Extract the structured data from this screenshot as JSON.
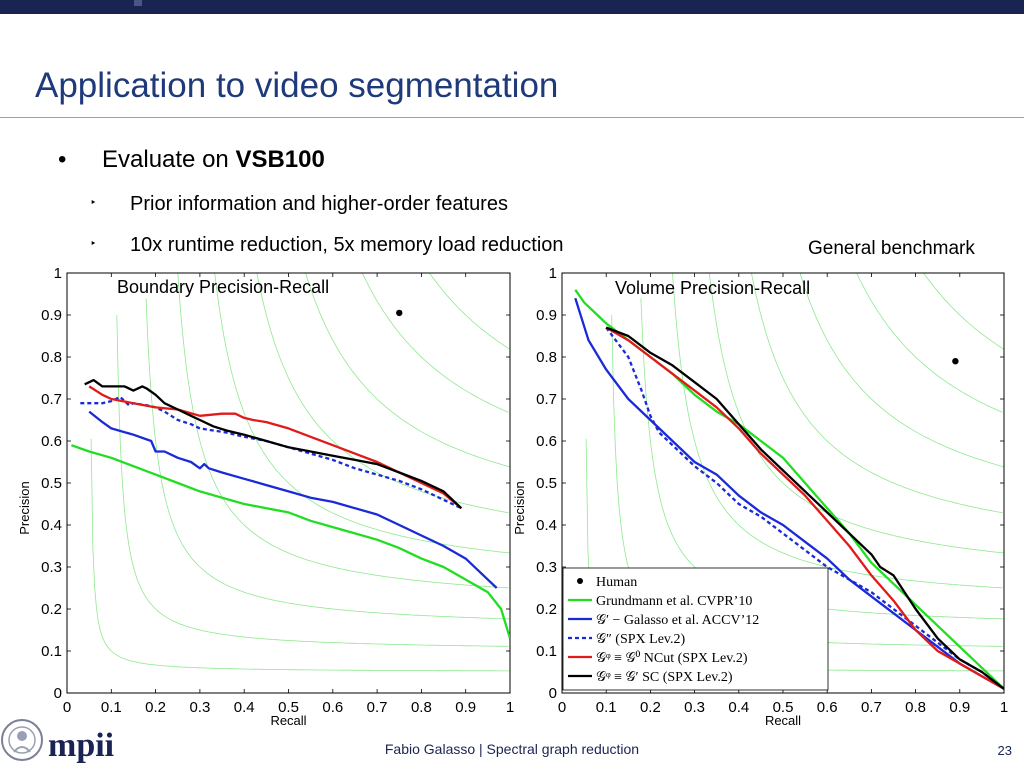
{
  "slide": {
    "title": "Application to video segmentation",
    "bullet": {
      "prefix": "Evaluate on ",
      "bold": "VSB100"
    },
    "subbullets": [
      "Prior information and higher-order features",
      "10x runtime reduction, 5x memory load reduction"
    ],
    "bullet_marker": "•",
    "sub_marker": "‣",
    "right_note": "General benchmark",
    "footer": "Fabio Galasso | Spectral graph reduction",
    "page_number": "23",
    "logo_text": "mpii"
  },
  "chart_data": [
    {
      "type": "line",
      "annotation": "Boundary Precision-Recall",
      "xlabel": "Recall",
      "ylabel": "Precision",
      "xlim": [
        0,
        1
      ],
      "ylim": [
        0,
        1
      ],
      "xticks": [
        "0",
        "0.1",
        "0.2",
        "0.3",
        "0.4",
        "0.5",
        "0.6",
        "0.7",
        "0.8",
        "0.9",
        "1"
      ],
      "yticks": [
        "0",
        "0.1",
        "0.2",
        "0.3",
        "0.4",
        "0.5",
        "0.6",
        "0.7",
        "0.8",
        "0.9",
        "1"
      ],
      "grid": "iso-F curves",
      "human": {
        "x": 0.75,
        "y": 0.905
      },
      "series": [
        {
          "color": "#22dd22",
          "dash": false,
          "x": [
            0.01,
            0.05,
            0.1,
            0.15,
            0.2,
            0.25,
            0.3,
            0.35,
            0.4,
            0.45,
            0.5,
            0.55,
            0.6,
            0.65,
            0.7,
            0.75,
            0.8,
            0.85,
            0.9,
            0.95,
            0.98,
            1.0
          ],
          "y": [
            0.59,
            0.575,
            0.56,
            0.54,
            0.52,
            0.5,
            0.48,
            0.465,
            0.45,
            0.44,
            0.43,
            0.41,
            0.395,
            0.38,
            0.365,
            0.345,
            0.32,
            0.3,
            0.27,
            0.24,
            0.2,
            0.13
          ]
        },
        {
          "color": "#1a2ad8",
          "dash": false,
          "x": [
            0.05,
            0.08,
            0.1,
            0.15,
            0.19,
            0.2,
            0.22,
            0.25,
            0.28,
            0.3,
            0.31,
            0.32,
            0.35,
            0.4,
            0.45,
            0.5,
            0.55,
            0.6,
            0.65,
            0.7,
            0.75,
            0.8,
            0.85,
            0.9,
            0.95,
            0.97
          ],
          "y": [
            0.67,
            0.645,
            0.63,
            0.615,
            0.6,
            0.575,
            0.575,
            0.56,
            0.55,
            0.535,
            0.545,
            0.535,
            0.525,
            0.51,
            0.495,
            0.48,
            0.465,
            0.455,
            0.44,
            0.425,
            0.4,
            0.375,
            0.35,
            0.32,
            0.27,
            0.25
          ]
        },
        {
          "color": "#1a2ad8",
          "dash": true,
          "x": [
            0.03,
            0.06,
            0.08,
            0.1,
            0.12,
            0.14,
            0.15,
            0.18,
            0.2,
            0.22,
            0.25,
            0.28,
            0.3,
            0.33,
            0.36,
            0.4,
            0.45,
            0.5,
            0.55,
            0.6,
            0.65,
            0.7,
            0.75,
            0.8,
            0.85,
            0.89
          ],
          "y": [
            0.69,
            0.69,
            0.69,
            0.695,
            0.705,
            0.685,
            0.69,
            0.685,
            0.68,
            0.67,
            0.65,
            0.64,
            0.63,
            0.625,
            0.62,
            0.61,
            0.6,
            0.585,
            0.57,
            0.555,
            0.535,
            0.52,
            0.505,
            0.485,
            0.46,
            0.44
          ]
        },
        {
          "color": "#e11a1a",
          "dash": false,
          "x": [
            0.05,
            0.08,
            0.1,
            0.15,
            0.2,
            0.25,
            0.3,
            0.35,
            0.38,
            0.4,
            0.42,
            0.45,
            0.5,
            0.55,
            0.6,
            0.65,
            0.7,
            0.75,
            0.8,
            0.85,
            0.89
          ],
          "y": [
            0.73,
            0.71,
            0.7,
            0.69,
            0.68,
            0.675,
            0.66,
            0.665,
            0.665,
            0.655,
            0.65,
            0.645,
            0.63,
            0.61,
            0.59,
            0.57,
            0.55,
            0.525,
            0.5,
            0.475,
            0.44
          ]
        },
        {
          "color": "#000000",
          "dash": false,
          "x": [
            0.04,
            0.06,
            0.08,
            0.1,
            0.13,
            0.15,
            0.17,
            0.18,
            0.2,
            0.22,
            0.25,
            0.28,
            0.3,
            0.33,
            0.36,
            0.4,
            0.45,
            0.5,
            0.55,
            0.6,
            0.65,
            0.7,
            0.75,
            0.8,
            0.85,
            0.89
          ],
          "y": [
            0.735,
            0.745,
            0.73,
            0.73,
            0.73,
            0.72,
            0.73,
            0.725,
            0.71,
            0.69,
            0.675,
            0.66,
            0.65,
            0.635,
            0.625,
            0.615,
            0.6,
            0.585,
            0.575,
            0.565,
            0.555,
            0.545,
            0.525,
            0.505,
            0.48,
            0.44
          ]
        }
      ]
    },
    {
      "type": "line",
      "annotation": "Volume Precision-Recall",
      "xlabel": "Recall",
      "ylabel": "Precision",
      "xlim": [
        0,
        1
      ],
      "ylim": [
        0,
        1
      ],
      "xticks": [
        "0",
        "0.1",
        "0.2",
        "0.3",
        "0.4",
        "0.5",
        "0.6",
        "0.7",
        "0.8",
        "0.9",
        "1"
      ],
      "yticks": [
        "0",
        "0.1",
        "0.2",
        "0.3",
        "0.4",
        "0.5",
        "0.6",
        "0.7",
        "0.8",
        "0.9",
        "1"
      ],
      "grid": "iso-F curves",
      "legend_position": "lower-right",
      "human": {
        "x": 0.89,
        "y": 0.79
      },
      "series": [
        {
          "name": "Grundmann et al. CVPR’10",
          "color": "#22dd22",
          "dash": false,
          "x": [
            0.03,
            0.05,
            0.08,
            0.1,
            0.15,
            0.2,
            0.25,
            0.3,
            0.35,
            0.4,
            0.45,
            0.5,
            0.55,
            0.6,
            0.65,
            0.7,
            0.75,
            0.8,
            0.85,
            0.9,
            0.95,
            1.0
          ],
          "y": [
            0.96,
            0.93,
            0.9,
            0.88,
            0.84,
            0.8,
            0.76,
            0.71,
            0.67,
            0.64,
            0.6,
            0.56,
            0.5,
            0.44,
            0.38,
            0.31,
            0.26,
            0.21,
            0.16,
            0.11,
            0.06,
            0.01
          ]
        },
        {
          "name": "𝒢′ − Galasso et al. ACCV’12",
          "color": "#1a2ad8",
          "dash": false,
          "x": [
            0.03,
            0.06,
            0.1,
            0.15,
            0.2,
            0.25,
            0.3,
            0.35,
            0.4,
            0.45,
            0.5,
            0.55,
            0.6,
            0.65,
            0.7,
            0.75,
            0.8,
            0.85,
            0.9,
            0.95,
            1.0
          ],
          "y": [
            0.94,
            0.84,
            0.77,
            0.7,
            0.65,
            0.6,
            0.55,
            0.52,
            0.47,
            0.43,
            0.4,
            0.36,
            0.32,
            0.27,
            0.23,
            0.19,
            0.15,
            0.11,
            0.07,
            0.04,
            0.01
          ]
        },
        {
          "name": "𝒢″ (SPX Lev.2)",
          "color": "#1a2ad8",
          "dash": true,
          "x": [
            0.1,
            0.15,
            0.18,
            0.2,
            0.22,
            0.25,
            0.3,
            0.35,
            0.4,
            0.45,
            0.5,
            0.55,
            0.6,
            0.65,
            0.7,
            0.75,
            0.8,
            0.85,
            0.9,
            0.95,
            1.0
          ],
          "y": [
            0.87,
            0.8,
            0.72,
            0.66,
            0.62,
            0.59,
            0.54,
            0.5,
            0.45,
            0.42,
            0.38,
            0.34,
            0.3,
            0.27,
            0.24,
            0.2,
            0.16,
            0.12,
            0.08,
            0.05,
            0.01
          ]
        },
        {
          "name": "𝒢ᵠ ≡ 𝒢⁰ NCut (SPX Lev.2)",
          "color": "#e11a1a",
          "dash": false,
          "x": [
            0.1,
            0.15,
            0.2,
            0.25,
            0.3,
            0.35,
            0.4,
            0.45,
            0.5,
            0.55,
            0.6,
            0.65,
            0.7,
            0.75,
            0.8,
            0.85,
            0.9,
            0.95,
            1.0
          ],
          "y": [
            0.87,
            0.84,
            0.8,
            0.76,
            0.72,
            0.68,
            0.63,
            0.57,
            0.52,
            0.47,
            0.41,
            0.35,
            0.28,
            0.22,
            0.15,
            0.1,
            0.07,
            0.04,
            0.01
          ]
        },
        {
          "name": "𝒢ᵠ ≡ 𝒢′ SC (SPX Lev.2)",
          "color": "#000000",
          "dash": false,
          "x": [
            0.1,
            0.15,
            0.2,
            0.25,
            0.3,
            0.35,
            0.4,
            0.45,
            0.5,
            0.55,
            0.6,
            0.65,
            0.7,
            0.72,
            0.75,
            0.8,
            0.85,
            0.9,
            0.95,
            1.0
          ],
          "y": [
            0.87,
            0.85,
            0.81,
            0.78,
            0.74,
            0.7,
            0.64,
            0.58,
            0.53,
            0.48,
            0.43,
            0.38,
            0.33,
            0.3,
            0.28,
            0.2,
            0.13,
            0.08,
            0.05,
            0.01
          ]
        }
      ],
      "legend": [
        {
          "marker": "dot",
          "label": "Human"
        },
        {
          "marker": "line",
          "color": "#22dd22",
          "dash": false,
          "label": "Grundmann et al. CVPR’10"
        },
        {
          "marker": "line",
          "color": "#1a2ad8",
          "dash": false,
          "label": "𝒢′ − Galasso et al. ACCV’12"
        },
        {
          "marker": "line",
          "color": "#1a2ad8",
          "dash": true,
          "label": "𝒢″ (SPX Lev.2)"
        },
        {
          "marker": "line",
          "color": "#e11a1a",
          "dash": false,
          "label": "𝒢ᵠ ≡ 𝒢⁰ NCut (SPX Lev.2)"
        },
        {
          "marker": "line",
          "color": "#000000",
          "dash": false,
          "label": "𝒢ᵠ ≡ 𝒢′ SC (SPX Lev.2)"
        }
      ]
    }
  ]
}
